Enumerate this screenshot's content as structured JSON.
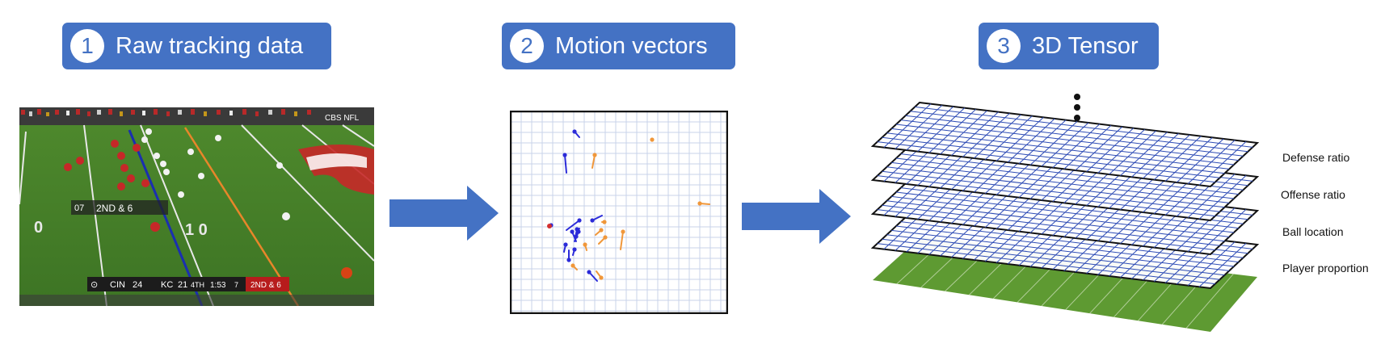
{
  "steps": [
    {
      "number": "1",
      "label": "Raw tracking data"
    },
    {
      "number": "2",
      "label": "Motion vectors"
    },
    {
      "number": "3",
      "label": "3D Tensor"
    }
  ],
  "scoreboard": {
    "network": "CBS NFL",
    "away_team": "CIN",
    "away_score": "24",
    "home_team": "KC",
    "home_score": "21",
    "quarter": "4TH",
    "clock": "1:53",
    "timeouts": "7",
    "down_distance": "2ND & 6"
  },
  "field_overlay": {
    "down_marker": "07",
    "down_text": "2ND & 6"
  },
  "tensor_layers": [
    {
      "label": "Defense ratio"
    },
    {
      "label": "Offense ratio"
    },
    {
      "label": "Ball location"
    },
    {
      "label": "Player proportion"
    }
  ],
  "colors": {
    "badge": "#4472c4",
    "arrow": "#4472c4",
    "offense_vector": "#2b2bd9",
    "defense_vector": "#f0973a",
    "grid_line": "#c9d3ea",
    "tensor_grid": "#2d4bb5",
    "turf": "#5e9a32"
  }
}
